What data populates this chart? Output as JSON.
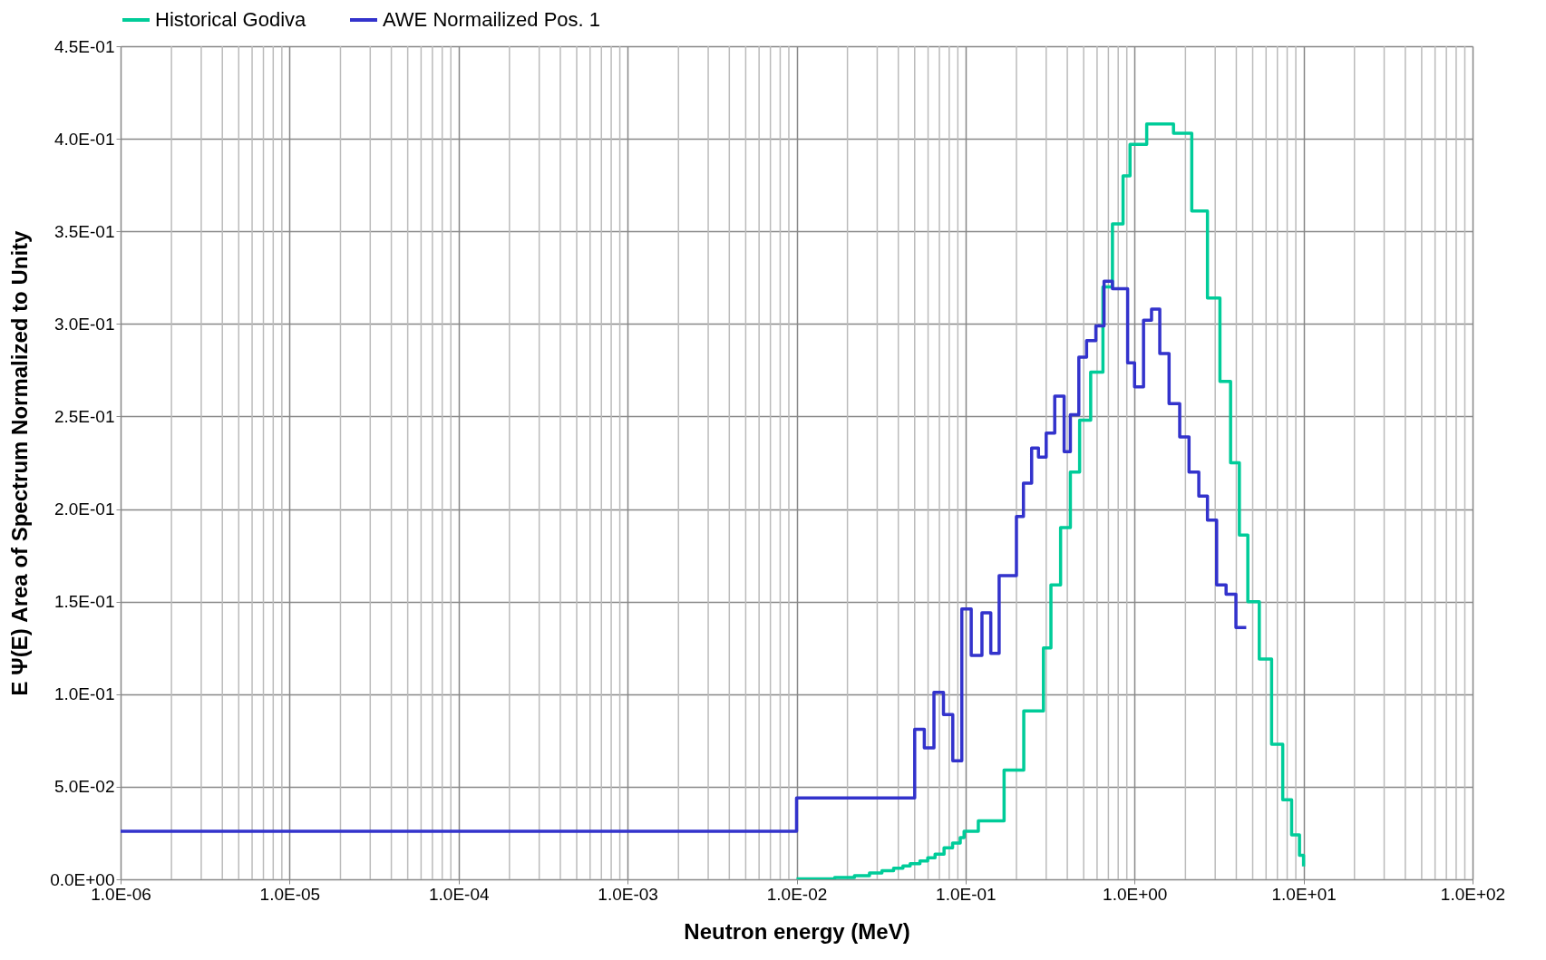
{
  "chart_data": {
    "type": "step",
    "xlabel": "Neutron energy (MeV)",
    "ylabel": "E Ψ(E) Area of Spectrum Normalized to Unity",
    "log": "x",
    "grid": true,
    "legend": "top",
    "line_style": "solid",
    "marker": "none",
    "xlim": [
      1e-06,
      100
    ],
    "xticks": [
      {
        "value": 1e-06,
        "label": "1.0E-06"
      },
      {
        "value": 1e-05,
        "label": "1.0E-05"
      },
      {
        "value": 0.0001,
        "label": "1.0E-04"
      },
      {
        "value": 0.001,
        "label": "1.0E-03"
      },
      {
        "value": 0.01,
        "label": "1.0E-02"
      },
      {
        "value": 0.1,
        "label": "1.0E-01"
      },
      {
        "value": 1,
        "label": "1.0E+00"
      },
      {
        "value": 10,
        "label": "1.0E+01"
      },
      {
        "value": 100,
        "label": "1.0E+02"
      }
    ],
    "ylim": [
      0,
      0.45
    ],
    "yticks": [
      {
        "value": 0,
        "label": "0.0E+00"
      },
      {
        "value": 0.05,
        "label": "5.0E-02"
      },
      {
        "value": 0.1,
        "label": "1.0E-01"
      },
      {
        "value": 0.15,
        "label": "1.5E-01"
      },
      {
        "value": 0.2,
        "label": "2.0E-01"
      },
      {
        "value": 0.25,
        "label": "2.5E-01"
      },
      {
        "value": 0.3,
        "label": "3.0E-01"
      },
      {
        "value": 0.35,
        "label": "3.5E-01"
      },
      {
        "value": 0.4,
        "label": "4.0E-01"
      },
      {
        "value": 0.45,
        "label": "4.5E-01"
      }
    ],
    "series": [
      {
        "name": "Historical Godiva",
        "color": "#00cc99",
        "x": [
          0.01,
          0.0168,
          0.022,
          0.027,
          0.032,
          0.0375,
          0.0426,
          0.047,
          0.0537,
          0.0597,
          0.066,
          0.0746,
          0.0838,
          0.093,
          0.098,
          0.119,
          0.169,
          0.221,
          0.289,
          0.32,
          0.365,
          0.417,
          0.473,
          0.55,
          0.65,
          0.74,
          0.855,
          0.94,
          1.18,
          1.7,
          2.18,
          2.7,
          3.2,
          3.7,
          4.17,
          4.68,
          5.47,
          6.47,
          7.53,
          8.5,
          9.46,
          10
        ],
        "values": [
          0.0003,
          0.001,
          0.002,
          0.0034,
          0.0046,
          0.006,
          0.0072,
          0.0085,
          0.0099,
          0.0116,
          0.0136,
          0.017,
          0.0196,
          0.0225,
          0.026,
          0.0316,
          0.059,
          0.091,
          0.125,
          0.159,
          0.19,
          0.22,
          0.248,
          0.274,
          0.32,
          0.354,
          0.38,
          0.397,
          0.408,
          0.403,
          0.361,
          0.314,
          0.269,
          0.225,
          0.186,
          0.15,
          0.119,
          0.073,
          0.043,
          0.024,
          0.013,
          0.007
        ]
      },
      {
        "name": "AWE Normailized Pos. 1",
        "color": "#3333cc",
        "x": [
          1e-06,
          0.01,
          0.05,
          0.057,
          0.065,
          0.074,
          0.084,
          0.095,
          0.108,
          0.125,
          0.141,
          0.158,
          0.2,
          0.22,
          0.246,
          0.27,
          0.3,
          0.337,
          0.383,
          0.417,
          0.468,
          0.52,
          0.59,
          0.66,
          0.74,
          0.91,
          1.0,
          1.13,
          1.26,
          1.41,
          1.6,
          1.85,
          2.1,
          2.4,
          2.7,
          3.06,
          3.48,
          3.98,
          4.58
        ],
        "values": [
          0.026,
          0.044,
          0.081,
          0.071,
          0.101,
          0.089,
          0.064,
          0.146,
          0.121,
          0.144,
          0.122,
          0.164,
          0.196,
          0.214,
          0.233,
          0.228,
          0.241,
          0.261,
          0.231,
          0.251,
          0.282,
          0.291,
          0.299,
          0.323,
          0.319,
          0.279,
          0.266,
          0.302,
          0.308,
          0.284,
          0.257,
          0.239,
          0.22,
          0.207,
          0.194,
          0.159,
          0.154,
          0.136,
          0.136
        ]
      }
    ]
  }
}
